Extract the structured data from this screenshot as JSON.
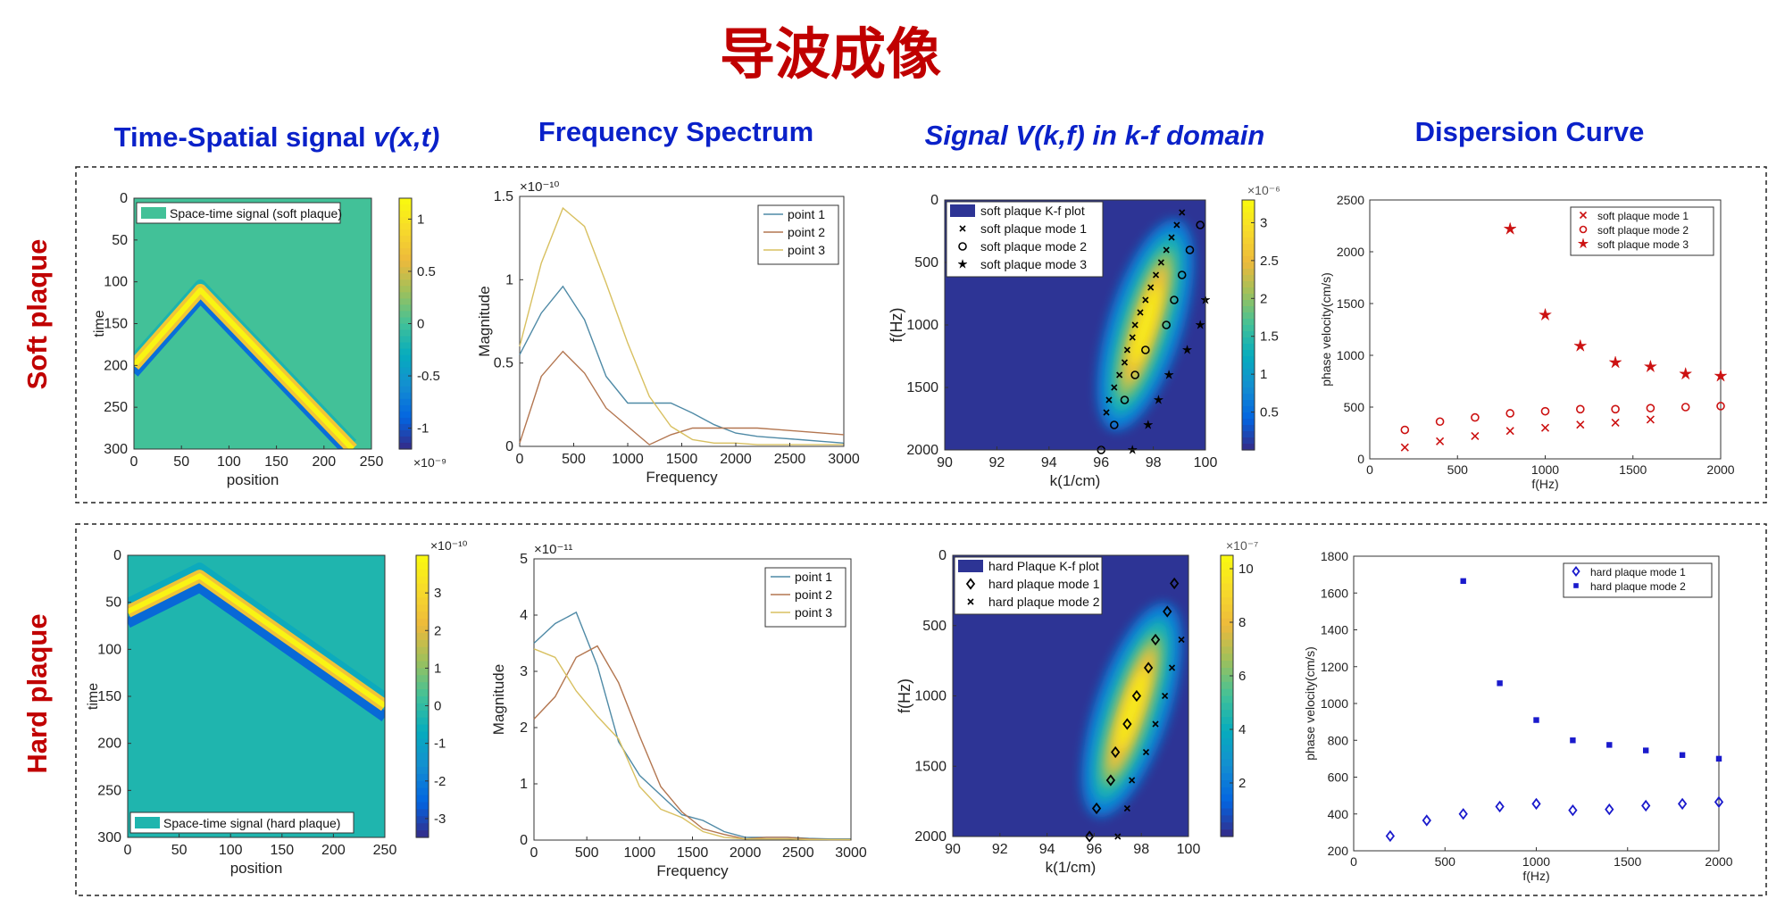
{
  "page": {
    "title": "导波成像",
    "col_headers": [
      {
        "prefix": "Time-Spatial signal ",
        "italic": "v(x,t)",
        "suffix": ""
      },
      {
        "prefix": "Frequency Spectrum",
        "italic": "",
        "suffix": ""
      },
      {
        "prefix": "",
        "italic": "Signal V(k,f) in k-f domain",
        "suffix": ""
      },
      {
        "prefix": "Dispersion Curve",
        "italic": "",
        "suffix": ""
      }
    ],
    "row_labels": [
      "Soft plaque",
      "Hard plaque"
    ],
    "colors": {
      "title": "#c00000",
      "header": "#0a21c9",
      "row_label": "#c00000"
    }
  },
  "chart_data": [
    {
      "type": "heatmap",
      "id": "soft_ts",
      "xlabel": "position",
      "ylabel": "time",
      "xlim": [
        0,
        250
      ],
      "ylim": [
        0,
        300
      ],
      "xticks": [
        0,
        50,
        100,
        150,
        200,
        250
      ],
      "yticks": [
        0,
        50,
        100,
        150,
        200,
        250,
        300
      ],
      "legend": "Space-time signal (soft plaque)",
      "legend_position": "top-left",
      "colorbar": {
        "ticks": [
          "1",
          "0.5",
          "0",
          "-0.5",
          "-1"
        ],
        "values": [
          1,
          0.5,
          0,
          -0.5,
          -1
        ],
        "range": [
          -1.2,
          1.2
        ],
        "exponent_label": "×10⁻⁹"
      },
      "background": 0,
      "wave": {
        "apex_position": 70,
        "apex_time": 110,
        "left_intercept_time": 200,
        "right_end_position": 230,
        "right_end_time": 300
      }
    },
    {
      "type": "line",
      "id": "soft_fs",
      "xlabel": "Frequency",
      "ylabel": "Magnitude",
      "xlim": [
        0,
        3000
      ],
      "ylim": [
        0,
        1.5
      ],
      "xticks": [
        0,
        500,
        1000,
        1500,
        2000,
        2500,
        3000
      ],
      "yticks": [
        0,
        0.5,
        1,
        1.5
      ],
      "yticklabels": [
        "0",
        "0.5",
        "1",
        "1.5"
      ],
      "exponent_label": "×10⁻¹⁰",
      "legend_position": "top-right",
      "x": [
        0,
        200,
        400,
        600,
        800,
        1000,
        1200,
        1400,
        1600,
        1800,
        2000,
        2200,
        2400,
        2600,
        2800,
        3000
      ],
      "series": [
        {
          "name": "point 1",
          "color": "#4f8aa6",
          "values": [
            0.55,
            0.8,
            0.96,
            0.76,
            0.42,
            0.26,
            0.26,
            0.26,
            0.2,
            0.13,
            0.08,
            0.06,
            0.05,
            0.04,
            0.03,
            0.02
          ]
        },
        {
          "name": "point 2",
          "color": "#b37650",
          "values": [
            0.02,
            0.42,
            0.57,
            0.44,
            0.23,
            0.12,
            0.01,
            0.07,
            0.11,
            0.11,
            0.11,
            0.11,
            0.1,
            0.09,
            0.08,
            0.07
          ]
        },
        {
          "name": "point 3",
          "color": "#d8c060",
          "values": [
            0.6,
            1.1,
            1.43,
            1.32,
            0.98,
            0.62,
            0.3,
            0.12,
            0.04,
            0.02,
            0.02,
            0.01,
            0.01,
            0.01,
            0.01,
            0.01
          ]
        }
      ]
    },
    {
      "type": "heatmap",
      "id": "soft_kf",
      "xlabel": "k(1/cm)",
      "ylabel": "f(Hz)",
      "xlim": [
        90,
        100
      ],
      "ylim": [
        0,
        2000
      ],
      "xticks": [
        90,
        92,
        94,
        96,
        98,
        100
      ],
      "yticks": [
        0,
        500,
        1000,
        1500,
        2000
      ],
      "colorbar": {
        "ticks": [
          "3",
          "2.5",
          "2",
          "1.5",
          "1",
          "0.5"
        ],
        "values": [
          3,
          2.5,
          2,
          1.5,
          1,
          0.5
        ],
        "range": [
          0,
          3.3
        ],
        "exponent_label": "×10⁻⁶"
      },
      "ridge": [
        {
          "k": 96.2,
          "f": 2000
        },
        {
          "k": 99.2,
          "f": 0
        }
      ],
      "legend_position": "top-left",
      "legend": [
        {
          "name": "soft plaque K-f plot",
          "marker": "patch"
        },
        {
          "name": "soft plaque mode 1",
          "marker": "x"
        },
        {
          "name": "soft plaque mode 2",
          "marker": "o"
        },
        {
          "name": "soft plaque mode 3",
          "marker": "star"
        }
      ],
      "series": [
        {
          "name": "soft plaque mode 1",
          "marker": "x",
          "points": [
            [
              99.1,
              100
            ],
            [
              98.9,
              200
            ],
            [
              98.7,
              300
            ],
            [
              98.5,
              400
            ],
            [
              98.3,
              500
            ],
            [
              98.1,
              600
            ],
            [
              97.9,
              700
            ],
            [
              97.7,
              800
            ],
            [
              97.5,
              900
            ],
            [
              97.3,
              1000
            ],
            [
              97.2,
              1100
            ],
            [
              97.0,
              1200
            ],
            [
              96.9,
              1300
            ],
            [
              96.7,
              1400
            ],
            [
              96.5,
              1500
            ],
            [
              96.3,
              1600
            ],
            [
              96.2,
              1700
            ]
          ]
        },
        {
          "name": "soft plaque mode 2",
          "marker": "o",
          "points": [
            [
              99.8,
              200
            ],
            [
              99.4,
              400
            ],
            [
              99.1,
              600
            ],
            [
              98.8,
              800
            ],
            [
              98.5,
              1000
            ],
            [
              97.7,
              1200
            ],
            [
              97.3,
              1400
            ],
            [
              96.9,
              1600
            ],
            [
              96.5,
              1800
            ],
            [
              96.0,
              2000
            ]
          ]
        },
        {
          "name": "soft plaque mode 3",
          "marker": "star",
          "points": [
            [
              100.0,
              800
            ],
            [
              99.8,
              1000
            ],
            [
              99.3,
              1200
            ],
            [
              98.6,
              1400
            ],
            [
              98.2,
              1600
            ],
            [
              97.8,
              1800
            ],
            [
              97.2,
              2000
            ]
          ]
        }
      ]
    },
    {
      "type": "scatter",
      "id": "soft_dc",
      "xlabel": "f(Hz)",
      "ylabel": "phase velocity(cm/s)",
      "xlim": [
        0,
        2000
      ],
      "ylim": [
        0,
        2500
      ],
      "xticks": [
        0,
        500,
        1000,
        1500,
        2000
      ],
      "yticks": [
        0,
        500,
        1000,
        1500,
        2000,
        2500
      ],
      "legend_position": "top-right",
      "series": [
        {
          "name": "soft plaque mode 1",
          "marker": "x",
          "color": "#cc1111",
          "points": [
            [
              200,
              110
            ],
            [
              400,
              170
            ],
            [
              600,
              220
            ],
            [
              800,
              270
            ],
            [
              1000,
              300
            ],
            [
              1200,
              330
            ],
            [
              1400,
              350
            ],
            [
              1600,
              380
            ]
          ]
        },
        {
          "name": "soft plaque mode 2",
          "marker": "o",
          "color": "#cc1111",
          "points": [
            [
              200,
              280
            ],
            [
              400,
              360
            ],
            [
              600,
              400
            ],
            [
              800,
              440
            ],
            [
              1000,
              460
            ],
            [
              1200,
              480
            ],
            [
              1400,
              480
            ],
            [
              1600,
              490
            ],
            [
              1800,
              500
            ],
            [
              2000,
              510
            ]
          ]
        },
        {
          "name": "soft plaque mode 3",
          "marker": "star",
          "color": "#cc1111",
          "points": [
            [
              800,
              2220
            ],
            [
              1000,
              1390
            ],
            [
              1200,
              1090
            ],
            [
              1400,
              930
            ],
            [
              1600,
              890
            ],
            [
              1800,
              820
            ],
            [
              2000,
              800
            ]
          ]
        }
      ]
    },
    {
      "type": "heatmap",
      "id": "hard_ts",
      "xlabel": "position",
      "ylabel": "time",
      "xlim": [
        0,
        250
      ],
      "ylim": [
        0,
        300
      ],
      "xticks": [
        0,
        50,
        100,
        150,
        200,
        250
      ],
      "yticks": [
        0,
        50,
        100,
        150,
        200,
        250,
        300
      ],
      "legend": "Space-time signal (hard plaque)",
      "legend_position": "bottom-left",
      "colorbar": {
        "ticks": [
          "3",
          "2",
          "1",
          "0",
          "-1",
          "-2",
          "-3"
        ],
        "values": [
          3,
          2,
          1,
          0,
          -1,
          -2,
          -3
        ],
        "range": [
          -3.5,
          4
        ],
        "exponent_label": "×10⁻¹⁰"
      },
      "background": -0.3,
      "wave": {
        "apex_position": 70,
        "apex_time": 22,
        "left_intercept_time": 60,
        "right_end_position": 250,
        "right_end_time": 160
      }
    },
    {
      "type": "line",
      "id": "hard_fs",
      "xlabel": "Frequency",
      "ylabel": "Magnitude",
      "xlim": [
        0,
        3000
      ],
      "ylim": [
        0,
        5
      ],
      "xticks": [
        0,
        500,
        1000,
        1500,
        2000,
        2500,
        3000
      ],
      "yticks": [
        0,
        1,
        2,
        3,
        4,
        5
      ],
      "yticklabels": [
        "0",
        "1",
        "2",
        "3",
        "4",
        "5"
      ],
      "exponent_label": "×10⁻¹¹",
      "legend_position": "top-right",
      "x": [
        0,
        200,
        400,
        600,
        800,
        1000,
        1200,
        1400,
        1600,
        1800,
        2000,
        2200,
        2400,
        2600,
        2800,
        3000
      ],
      "series": [
        {
          "name": "point 1",
          "color": "#4f8aa6",
          "values": [
            3.5,
            3.85,
            4.05,
            3.1,
            1.75,
            1.15,
            0.8,
            0.45,
            0.35,
            0.15,
            0.05,
            0.05,
            0.05,
            0.03,
            0.02,
            0.02
          ]
        },
        {
          "name": "point 2",
          "color": "#b37650",
          "values": [
            2.15,
            2.55,
            3.25,
            3.45,
            2.8,
            1.85,
            0.95,
            0.5,
            0.2,
            0.1,
            0.02,
            0.05,
            0.05,
            0.02,
            0.01,
            0.01
          ]
        },
        {
          "name": "point 3",
          "color": "#d8c060",
          "values": [
            3.4,
            3.25,
            2.65,
            2.2,
            1.8,
            0.95,
            0.55,
            0.4,
            0.15,
            0.05,
            0.02,
            0.02,
            0.02,
            0.01,
            0.01,
            0.01
          ]
        }
      ]
    },
    {
      "type": "heatmap",
      "id": "hard_kf",
      "xlabel": "k(1/cm)",
      "ylabel": "f(Hz)",
      "xlim": [
        90,
        100
      ],
      "ylim": [
        0,
        2000
      ],
      "xticks": [
        90,
        92,
        94,
        96,
        98,
        100
      ],
      "yticks": [
        0,
        500,
        1000,
        1500,
        2000
      ],
      "colorbar": {
        "ticks": [
          "10",
          "8",
          "6",
          "4",
          "2"
        ],
        "values": [
          10,
          8,
          6,
          4,
          2
        ],
        "range": [
          0,
          10.5
        ],
        "exponent_label": "×10⁻⁷"
      },
      "ridge": [
        {
          "k": 95.8,
          "f": 2000
        },
        {
          "k": 99.4,
          "f": 200
        }
      ],
      "legend_position": "top-left",
      "legend": [
        {
          "name": "hard Plaque K-f plot",
          "marker": "patch"
        },
        {
          "name": "hard plaque mode 1",
          "marker": "diamond"
        },
        {
          "name": "hard plaque mode 2",
          "marker": "x"
        }
      ],
      "series": [
        {
          "name": "hard plaque mode 1",
          "marker": "diamond",
          "points": [
            [
              99.4,
              200
            ],
            [
              99.1,
              400
            ],
            [
              98.6,
              600
            ],
            [
              98.3,
              800
            ],
            [
              97.8,
              1000
            ],
            [
              97.4,
              1200
            ],
            [
              96.9,
              1400
            ],
            [
              96.7,
              1600
            ],
            [
              96.1,
              1800
            ],
            [
              95.8,
              2000
            ]
          ]
        },
        {
          "name": "hard plaque mode 2",
          "marker": "x",
          "points": [
            [
              99.7,
              600
            ],
            [
              99.3,
              800
            ],
            [
              99.0,
              1000
            ],
            [
              98.6,
              1200
            ],
            [
              98.2,
              1400
            ],
            [
              97.6,
              1600
            ],
            [
              97.4,
              1800
            ],
            [
              97.0,
              2000
            ]
          ]
        }
      ]
    },
    {
      "type": "scatter",
      "id": "hard_dc",
      "xlabel": "f(Hz)",
      "ylabel": "phase velocity(cm/s)",
      "xlim": [
        0,
        2000
      ],
      "ylim": [
        200,
        1800
      ],
      "xticks": [
        0,
        500,
        1000,
        1500,
        2000
      ],
      "yticks": [
        200,
        400,
        600,
        800,
        1000,
        1200,
        1400,
        1600,
        1800
      ],
      "legend_position": "top-right",
      "series": [
        {
          "name": "hard plaque mode 1",
          "marker": "diamond",
          "color": "#1a1acc",
          "points": [
            [
              200,
              280
            ],
            [
              400,
              365
            ],
            [
              600,
              400
            ],
            [
              800,
              440
            ],
            [
              1000,
              455
            ],
            [
              1200,
              420
            ],
            [
              1400,
              425
            ],
            [
              1600,
              445
            ],
            [
              1800,
              455
            ],
            [
              2000,
              465
            ]
          ]
        },
        {
          "name": "hard plaque mode 2",
          "marker": "square",
          "color": "#1a1acc",
          "points": [
            [
              600,
              1665
            ],
            [
              800,
              1110
            ],
            [
              1000,
              910
            ],
            [
              1200,
              800
            ],
            [
              1400,
              775
            ],
            [
              1600,
              745
            ],
            [
              1800,
              720
            ],
            [
              2000,
              700
            ]
          ]
        }
      ]
    }
  ]
}
